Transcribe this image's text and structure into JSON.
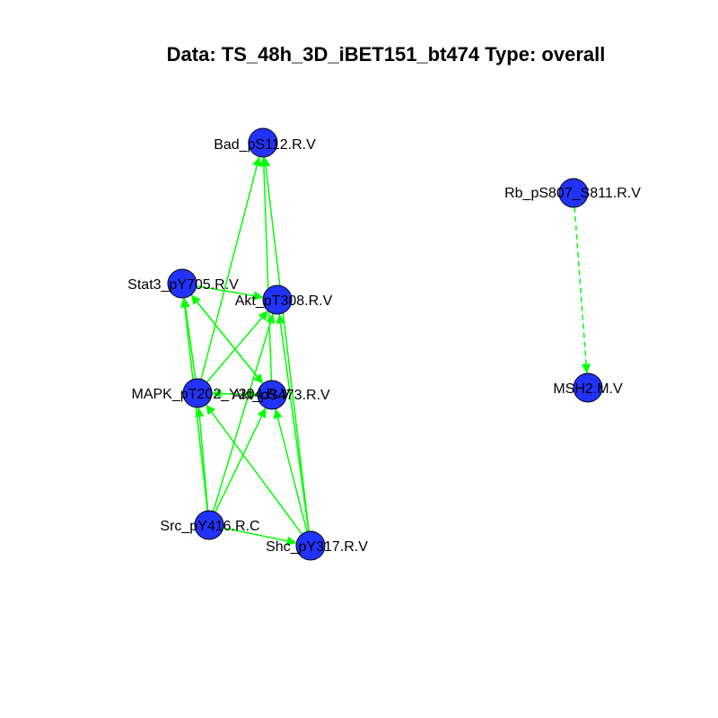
{
  "title": "Data: TS_48h_3D_iBET151_bt474 Type: overall",
  "colors": {
    "node_fill": "#2333ff",
    "node_stroke": "#000000",
    "edge": "#00ff00"
  },
  "nodes": [
    {
      "id": "bad",
      "label": "Bad_pS112.R.V"
    },
    {
      "id": "rb",
      "label": "Rb_pS807_S811.R.V"
    },
    {
      "id": "stat3",
      "label": "Stat3_pY705.R.V"
    },
    {
      "id": "akt308",
      "label": "Akt_pT308.R.V"
    },
    {
      "id": "mapk",
      "label": "MAPK_pT202_Y204.R.V"
    },
    {
      "id": "akt473",
      "label": "Akt_pS473.R.V"
    },
    {
      "id": "msh2",
      "label": "MSH2.M.V"
    },
    {
      "id": "src",
      "label": "Src_pY416.R.C"
    },
    {
      "id": "shc",
      "label": "Shc_pY317.R.V"
    }
  ],
  "edges": [
    {
      "from": "mapk",
      "to": "bad",
      "style": "solid"
    },
    {
      "from": "akt473",
      "to": "bad",
      "style": "solid"
    },
    {
      "from": "shc",
      "to": "bad",
      "style": "solid"
    },
    {
      "from": "stat3",
      "to": "akt308",
      "style": "solid"
    },
    {
      "from": "stat3",
      "to": "akt473",
      "style": "solid"
    },
    {
      "from": "mapk",
      "to": "akt308",
      "style": "solid"
    },
    {
      "from": "mapk",
      "to": "stat3",
      "style": "solid"
    },
    {
      "from": "mapk",
      "to": "akt473",
      "style": "solid"
    },
    {
      "from": "akt473",
      "to": "stat3",
      "style": "solid"
    },
    {
      "from": "akt473",
      "to": "mapk",
      "style": "solid"
    },
    {
      "from": "src",
      "to": "stat3",
      "style": "solid"
    },
    {
      "from": "src",
      "to": "mapk",
      "style": "solid"
    },
    {
      "from": "src",
      "to": "akt308",
      "style": "solid"
    },
    {
      "from": "src",
      "to": "akt473",
      "style": "solid"
    },
    {
      "from": "src",
      "to": "shc",
      "style": "solid"
    },
    {
      "from": "shc",
      "to": "akt308",
      "style": "solid"
    },
    {
      "from": "shc",
      "to": "akt473",
      "style": "solid"
    },
    {
      "from": "shc",
      "to": "mapk",
      "style": "solid"
    },
    {
      "from": "rb",
      "to": "msh2",
      "style": "dashed"
    }
  ]
}
